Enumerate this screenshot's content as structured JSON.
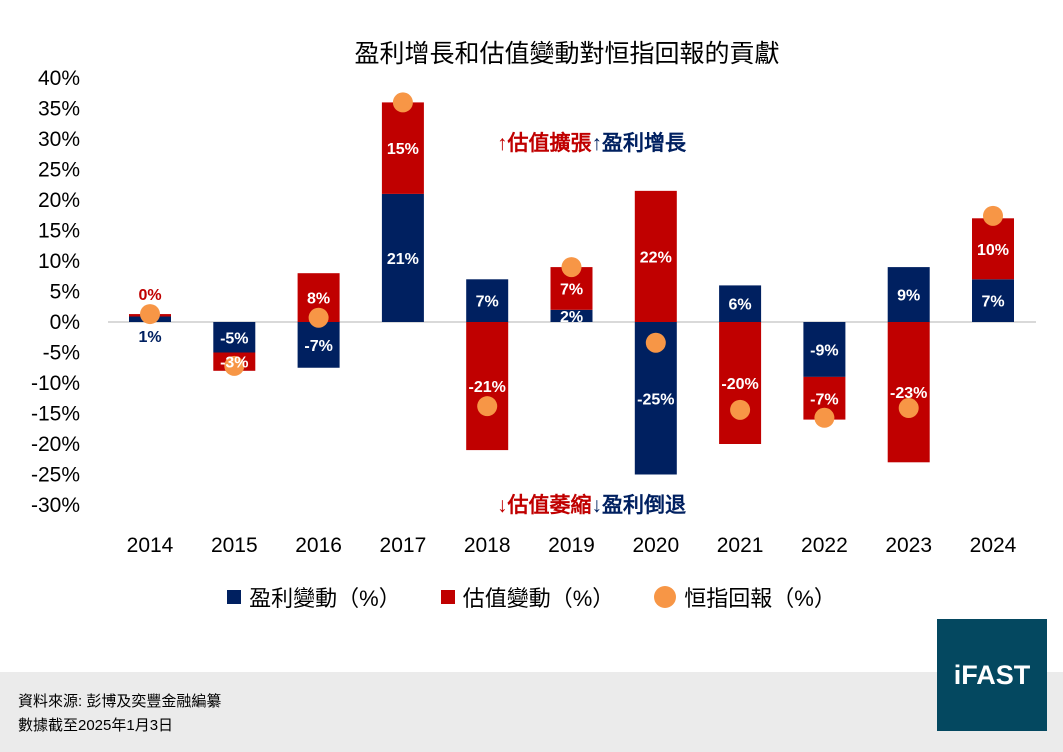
{
  "colors": {
    "earnings": "#002060",
    "valuation": "#c00000",
    "return": "#f79646",
    "logo_bg": "#044860",
    "footer_bg": "#ebebeb"
  },
  "chart_data": {
    "type": "bar",
    "stacked": true,
    "title": "盈利增長和估值變動對恒指回報的貢獻",
    "categories": [
      "2014",
      "2015",
      "2016",
      "2017",
      "2018",
      "2019",
      "2020",
      "2021",
      "2022",
      "2023",
      "2024"
    ],
    "series": [
      {
        "name": "盈利變動（%）",
        "type": "bar",
        "values": [
          0.9,
          -5,
          -7.5,
          21,
          7,
          2,
          -25,
          6,
          -9,
          9,
          7
        ]
      },
      {
        "name": "估值變動（%）",
        "type": "bar",
        "values": [
          0.4,
          -3,
          8,
          15,
          -21,
          7,
          21.5,
          -20,
          -7,
          -23,
          10
        ]
      },
      {
        "name": "恒指回報（%）",
        "type": "scatter",
        "values": [
          1.3,
          -7.2,
          0.7,
          36,
          -13.8,
          9,
          -3.4,
          -14.4,
          -15.7,
          -14.1,
          17.4
        ]
      }
    ],
    "yticks": [
      "40%",
      "35%",
      "30%",
      "25%",
      "20%",
      "15%",
      "10%",
      "5%",
      "0%",
      "-5%",
      "-10%",
      "-15%",
      "-20%",
      "-25%",
      "-30%"
    ],
    "ylim": [
      -30,
      40
    ],
    "grid": false,
    "legend_position": "bottom"
  },
  "annotations": {
    "top_red": "↑估值擴張",
    "top_navy": "↑盈利增長",
    "bottom_red": "↓估值萎縮",
    "bottom_navy": "↓盈利倒退"
  },
  "footer": {
    "source": "資料來源: 彭博及奕豐金融編纂",
    "date": "數據截至2025年1月3日"
  },
  "logo": "iFAST"
}
